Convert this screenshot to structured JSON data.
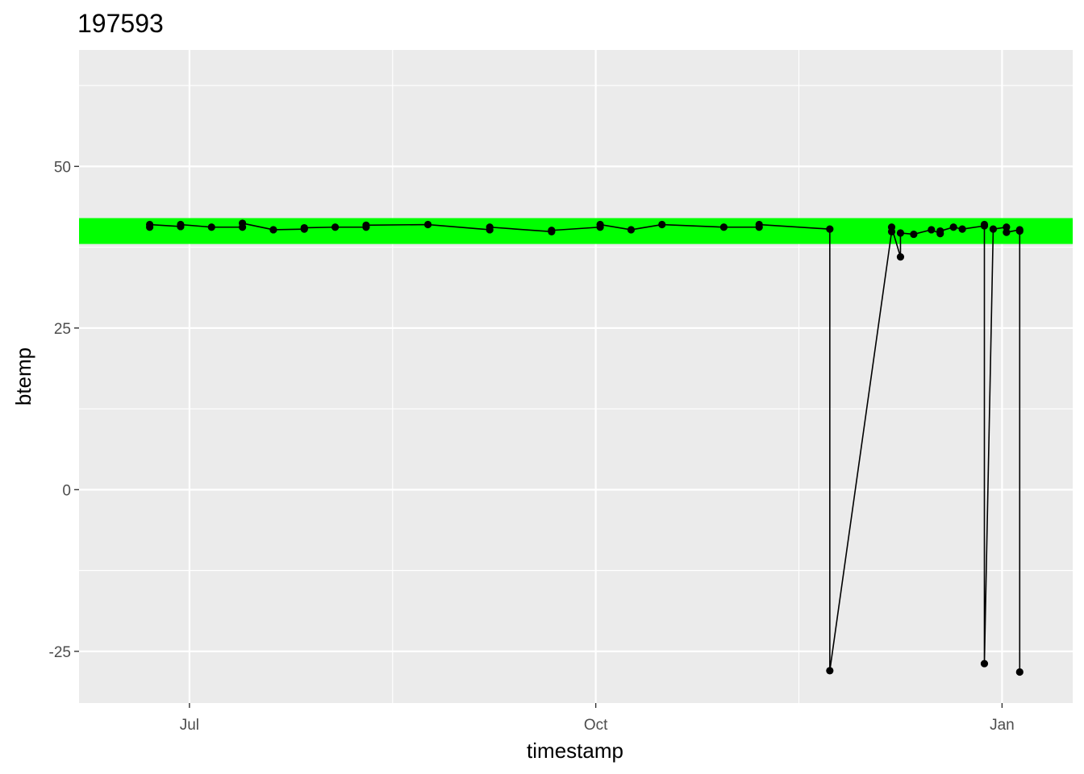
{
  "chart_data": {
    "type": "line",
    "title": "197593",
    "xlabel": "timestamp",
    "ylabel": "btemp",
    "x_axis_type": "date",
    "xlim": [
      "2023-06-06",
      "2024-01-17"
    ],
    "ylim": [
      -33,
      68
    ],
    "x_ticks": [
      {
        "date": "2023-07-01",
        "label": "Jul"
      },
      {
        "date": "2023-10-01",
        "label": "Oct"
      },
      {
        "date": "2024-01-01",
        "label": "Jan"
      }
    ],
    "x_minor_ticks": [
      "2023-08-16",
      "2023-11-16"
    ],
    "y_ticks": [
      -25,
      0,
      25,
      50
    ],
    "y_minor_ticks": [
      -12.5,
      12.5,
      37.5,
      62.5
    ],
    "grid": true,
    "legend": "none",
    "panel_color": "#EBEBEB",
    "grid_color": "#FFFFFF",
    "band": {
      "ymin": 38,
      "ymax": 42,
      "color": "#00FF00"
    },
    "line_color": "#000000",
    "point_color": "#000000",
    "series": [
      {
        "points": [
          {
            "x": "2023-06-22",
            "y": 40.6
          },
          {
            "x": "2023-06-22",
            "y": 41.0
          },
          {
            "x": "2023-06-29",
            "y": 40.7
          },
          {
            "x": "2023-06-29",
            "y": 41.0
          },
          {
            "x": "2023-07-06",
            "y": 40.6
          },
          {
            "x": "2023-07-13",
            "y": 40.6
          },
          {
            "x": "2023-07-13",
            "y": 41.2
          },
          {
            "x": "2023-07-20",
            "y": 40.2
          },
          {
            "x": "2023-07-27",
            "y": 40.3
          },
          {
            "x": "2023-07-27",
            "y": 40.5
          },
          {
            "x": "2023-08-03",
            "y": 40.6
          },
          {
            "x": "2023-08-10",
            "y": 40.6
          },
          {
            "x": "2023-08-10",
            "y": 40.9
          },
          {
            "x": "2023-08-24",
            "y": 41.0
          },
          {
            "x": "2023-09-07",
            "y": 40.2
          },
          {
            "x": "2023-09-07",
            "y": 40.6
          },
          {
            "x": "2023-09-21",
            "y": 39.9
          },
          {
            "x": "2023-09-21",
            "y": 40.1
          },
          {
            "x": "2023-10-02",
            "y": 40.6
          },
          {
            "x": "2023-10-02",
            "y": 41.0
          },
          {
            "x": "2023-10-09",
            "y": 40.2
          },
          {
            "x": "2023-10-16",
            "y": 41.0
          },
          {
            "x": "2023-10-30",
            "y": 40.6
          },
          {
            "x": "2023-11-07",
            "y": 40.6
          },
          {
            "x": "2023-11-07",
            "y": 41.0
          },
          {
            "x": "2023-11-23",
            "y": 40.3
          },
          {
            "x": "2023-11-23",
            "y": -28.0
          },
          {
            "x": "2023-12-07",
            "y": 39.9
          },
          {
            "x": "2023-12-07",
            "y": 40.6
          },
          {
            "x": "2023-12-09",
            "y": 36.0
          },
          {
            "x": "2023-12-09",
            "y": 39.7
          },
          {
            "x": "2023-12-12",
            "y": 39.5
          },
          {
            "x": "2023-12-16",
            "y": 40.2
          },
          {
            "x": "2023-12-18",
            "y": 39.6
          },
          {
            "x": "2023-12-18",
            "y": 40.0
          },
          {
            "x": "2023-12-21",
            "y": 40.6
          },
          {
            "x": "2023-12-23",
            "y": 40.3
          },
          {
            "x": "2023-12-28",
            "y": 40.8
          },
          {
            "x": "2023-12-28",
            "y": 41.0
          },
          {
            "x": "2023-12-28",
            "y": -26.9
          },
          {
            "x": "2023-12-30",
            "y": 40.3
          },
          {
            "x": "2024-01-02",
            "y": 40.6
          },
          {
            "x": "2024-01-02",
            "y": 39.8
          },
          {
            "x": "2024-01-05",
            "y": 40.2
          },
          {
            "x": "2024-01-05",
            "y": -28.2
          },
          {
            "x": "2024-01-05",
            "y": 40.0
          }
        ]
      }
    ]
  }
}
